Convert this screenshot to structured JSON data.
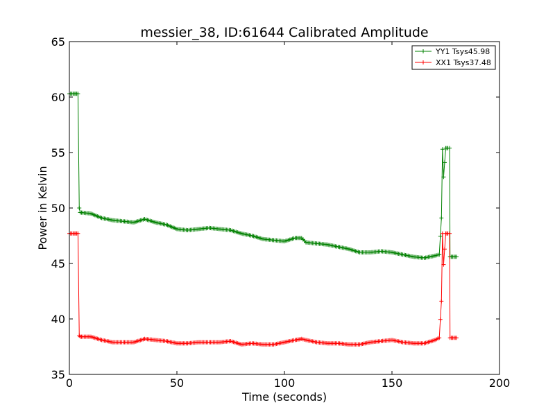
{
  "chart_data": {
    "type": "line",
    "title": "messier_38, ID:61644 Calibrated Amplitude",
    "xlabel": "Time (seconds)",
    "ylabel": "Power in Kelvin",
    "xlim": [
      0,
      200
    ],
    "ylim": [
      35,
      65
    ],
    "xticks": [
      0,
      50,
      100,
      150,
      200
    ],
    "yticks": [
      35,
      40,
      45,
      50,
      55,
      60,
      65
    ],
    "grid": false,
    "legend_position": "top-right",
    "series": [
      {
        "name": "YY1 Tsys45.98",
        "color": "#008000",
        "marker": "+",
        "x": [
          0,
          4,
          4.6,
          5,
          10,
          15,
          20,
          25,
          30,
          35,
          40,
          45,
          50,
          55,
          60,
          65,
          70,
          75,
          80,
          85,
          90,
          95,
          100,
          105,
          108,
          110,
          115,
          120,
          125,
          130,
          135,
          140,
          145,
          150,
          155,
          160,
          165,
          170,
          172,
          173,
          173.5,
          174,
          175,
          176,
          176.8,
          177,
          180
        ],
        "y": [
          60.3,
          60.3,
          50.0,
          49.6,
          49.5,
          49.1,
          48.9,
          48.8,
          48.7,
          49.0,
          48.7,
          48.5,
          48.1,
          48.0,
          48.1,
          48.2,
          48.1,
          48.0,
          47.7,
          47.5,
          47.2,
          47.1,
          47.0,
          47.3,
          47.3,
          46.9,
          46.8,
          46.7,
          46.5,
          46.3,
          46.0,
          46.0,
          46.1,
          46.0,
          45.8,
          45.6,
          45.5,
          45.7,
          45.8,
          49.1,
          55.3,
          52.8,
          55.4,
          55.4,
          55.4,
          45.6,
          45.6
        ]
      },
      {
        "name": "XX1 Tsys37.48",
        "color": "#ff0000",
        "marker": "+",
        "x": [
          0,
          4,
          4.6,
          5,
          10,
          15,
          20,
          25,
          30,
          35,
          40,
          45,
          50,
          55,
          60,
          65,
          70,
          75,
          80,
          85,
          90,
          95,
          100,
          105,
          108,
          110,
          115,
          120,
          125,
          130,
          135,
          140,
          145,
          150,
          155,
          160,
          165,
          170,
          172,
          173,
          173.5,
          174,
          175,
          176,
          176.8,
          177,
          180
        ],
        "y": [
          47.7,
          47.7,
          38.5,
          38.4,
          38.4,
          38.1,
          37.9,
          37.9,
          37.9,
          38.2,
          38.1,
          38.0,
          37.8,
          37.8,
          37.9,
          37.9,
          37.9,
          38.0,
          37.7,
          37.8,
          37.7,
          37.7,
          37.9,
          38.1,
          38.2,
          38.1,
          37.9,
          37.8,
          37.8,
          37.7,
          37.7,
          37.9,
          38.0,
          38.1,
          37.9,
          37.8,
          37.8,
          38.1,
          38.3,
          41.6,
          47.7,
          44.9,
          47.7,
          47.7,
          47.7,
          38.3,
          38.3
        ]
      }
    ]
  }
}
